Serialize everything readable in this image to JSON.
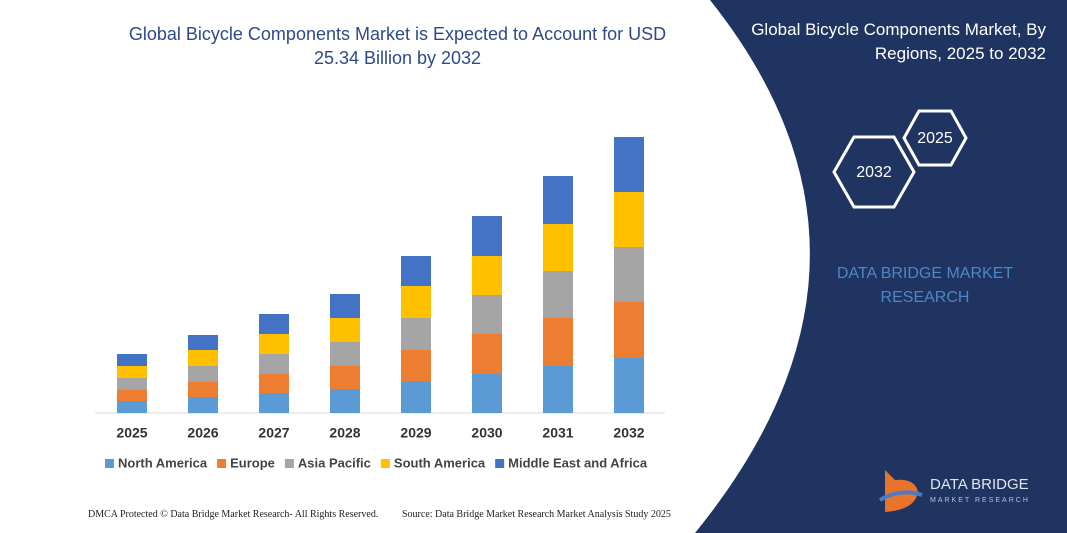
{
  "chart_data": {
    "type": "bar",
    "stacked": true,
    "title": "Global Bicycle Components Market is Expected to Account for USD 25.34 Billion by 2032",
    "categories": [
      "2025",
      "2026",
      "2027",
      "2028",
      "2029",
      "2030",
      "2031",
      "2032"
    ],
    "series": [
      {
        "name": "North America",
        "color": "#5b9bd5",
        "values": [
          12,
          16,
          20,
          24,
          32,
          39,
          47,
          55
        ]
      },
      {
        "name": "Europe",
        "color": "#ed7d31",
        "values": [
          11,
          15,
          19,
          23,
          31,
          40,
          48,
          56
        ]
      },
      {
        "name": "Asia Pacific",
        "color": "#a5a5a5",
        "values": [
          12,
          16,
          20,
          24,
          32,
          39,
          47,
          55
        ]
      },
      {
        "name": "South America",
        "color": "#ffc000",
        "values": [
          12,
          16,
          20,
          24,
          32,
          39,
          47,
          55
        ]
      },
      {
        "name": "Middle East and Africa",
        "color": "#4472c4",
        "values": [
          12,
          15,
          20,
          24,
          30,
          40,
          48,
          55
        ]
      }
    ],
    "ylim": [
      0,
      290
    ]
  },
  "panel": {
    "title": "Global Bicycle Components Market, By Regions, 2025 to 2032",
    "hexagons": [
      "2025",
      "2032"
    ],
    "brand": "DATA BRIDGE MARKET RESEARCH"
  },
  "logo": {
    "name": "DATA BRIDGE",
    "tagline": "MARKET RESEARCH"
  },
  "footer": {
    "left": "DMCA Protected © Data Bridge Market Research- All Rights Reserved.",
    "right": "Source: Data Bridge Market Research Market Analysis Study 2025"
  }
}
